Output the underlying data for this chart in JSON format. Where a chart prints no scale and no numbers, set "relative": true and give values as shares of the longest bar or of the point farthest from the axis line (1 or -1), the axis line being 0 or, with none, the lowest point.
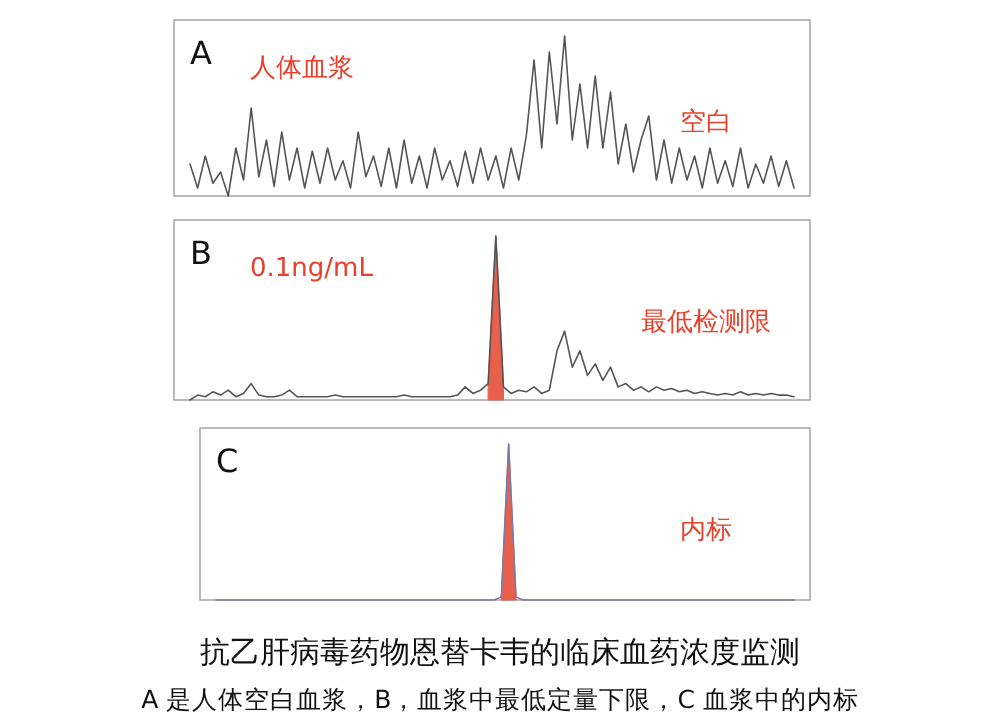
{
  "chart_data": [
    {
      "type": "line",
      "relative": true,
      "annotations": [
        "A",
        "人体血浆",
        "空白"
      ],
      "categories": [
        null,
        null,
        null,
        null,
        null,
        null,
        null,
        null,
        null,
        null,
        null,
        null,
        null,
        null,
        null,
        null,
        null,
        null,
        null,
        null,
        null,
        null,
        null,
        null,
        null,
        null,
        null,
        null,
        null,
        null,
        null,
        null,
        null,
        null,
        null,
        null,
        null,
        null,
        null,
        null,
        null,
        null,
        null,
        null,
        null,
        null,
        null,
        null,
        null,
        null,
        null,
        null,
        null,
        null,
        null,
        null,
        null,
        null,
        null,
        null,
        null,
        null,
        null,
        null,
        null,
        null,
        null,
        null,
        null,
        null,
        null,
        null,
        null,
        null,
        null,
        null,
        null,
        null,
        null,
        null
      ],
      "series": [
        {
          "color": "#555555",
          "values": [
            0.2,
            0.05,
            0.25,
            0.08,
            0.15,
            0,
            0.3,
            0.1,
            0.55,
            0.12,
            0.35,
            0.06,
            0.4,
            0.1,
            0.3,
            0.05,
            0.28,
            0.08,
            0.3,
            0.1,
            0.22,
            0.05,
            0.4,
            0.12,
            0.25,
            0.06,
            0.3,
            0.05,
            0.35,
            0.08,
            0.25,
            0.05,
            0.3,
            0.1,
            0.22,
            0.06,
            0.28,
            0.08,
            0.3,
            0.1,
            0.25,
            0.05,
            0.3,
            0.1,
            0.38,
            0.85,
            0.3,
            0.9,
            0.45,
            1.0,
            0.35,
            0.7,
            0.3,
            0.75,
            0.3,
            0.65,
            0.2,
            0.45,
            0.15,
            0.35,
            0.5,
            0.1,
            0.35,
            0.08,
            0.3,
            0.1,
            0.25,
            0.05,
            0.3,
            0.08,
            0.22,
            0.06,
            0.3,
            0.05,
            0.2,
            0.08,
            0.25,
            0.06,
            0.22,
            0.05
          ]
        }
      ]
    },
    {
      "type": "line",
      "relative": true,
      "annotations": [
        "B",
        "0.1ng/mL",
        "最低检测限"
      ],
      "categories": [
        null,
        null,
        null,
        null,
        null,
        null,
        null,
        null,
        null,
        null,
        null,
        null,
        null,
        null,
        null,
        null,
        null,
        null,
        null,
        null,
        null,
        null,
        null,
        null,
        null,
        null,
        null,
        null,
        null,
        null,
        null,
        null,
        null,
        null,
        null,
        null,
        null,
        null,
        null,
        null,
        null,
        null,
        null,
        null,
        null,
        null,
        null,
        null,
        null,
        null,
        null,
        null,
        null,
        null,
        null,
        null,
        null,
        null,
        null,
        null,
        null,
        null,
        null,
        null,
        null,
        null,
        null,
        null,
        null,
        null,
        null,
        null,
        null,
        null,
        null,
        null,
        null,
        null,
        null,
        null
      ],
      "series": [
        {
          "color": "#555555",
          "values": [
            0,
            0.03,
            0.02,
            0.05,
            0.03,
            0.06,
            0.02,
            0.04,
            0.1,
            0.03,
            0.02,
            0.02,
            0.03,
            0.06,
            0.02,
            0.02,
            0.02,
            0.02,
            0.02,
            0.03,
            0.02,
            0.02,
            0.02,
            0.02,
            0.02,
            0.02,
            0.02,
            0.02,
            0.03,
            0.02,
            0.02,
            0.02,
            0.02,
            0.02,
            0.02,
            0.03,
            0.08,
            0.04,
            0.06,
            0.1,
            1.0,
            0.08,
            0.04,
            0.06,
            0.05,
            0.08,
            0.04,
            0.06,
            0.3,
            0.42,
            0.2,
            0.3,
            0.15,
            0.22,
            0.12,
            0.2,
            0.08,
            0.1,
            0.06,
            0.08,
            0.05,
            0.08,
            0.06,
            0.07,
            0.05,
            0.06,
            0.04,
            0.05,
            0.04,
            0.03,
            0.04,
            0.03,
            0.05,
            0.03,
            0.04,
            0.03,
            0.04,
            0.03,
            0.03,
            0.02
          ]
        },
        {
          "type": "area",
          "color": "#e8604c",
          "values": [
            null,
            null,
            null,
            null,
            null,
            null,
            null,
            null,
            null,
            null,
            null,
            null,
            null,
            null,
            null,
            null,
            null,
            null,
            null,
            null,
            null,
            null,
            null,
            null,
            null,
            null,
            null,
            null,
            null,
            null,
            null,
            null,
            null,
            null,
            null,
            null,
            null,
            null,
            null,
            0.1,
            1.0,
            0.08,
            null,
            null,
            null,
            null,
            null,
            null,
            null,
            null,
            null,
            null,
            null,
            null,
            null,
            null,
            null,
            null,
            null,
            null,
            null,
            null,
            null,
            null,
            null,
            null,
            null,
            null,
            null,
            null,
            null,
            null,
            null,
            null,
            null,
            null,
            null,
            null,
            null,
            null
          ]
        }
      ]
    },
    {
      "type": "line",
      "relative": true,
      "title": "抗乙肝病毒药物恩替卡韦的临床血药浓度监测",
      "subtitle": "A 是人体空白血浆，B，血浆中最低定量下限，C 血浆中的内标",
      "annotations": [
        "C",
        "内标"
      ],
      "categories": [
        null,
        null,
        null,
        null,
        null,
        null,
        null,
        null,
        null,
        null,
        null,
        null,
        null,
        null,
        null,
        null,
        null,
        null,
        null,
        null,
        null,
        null,
        null,
        null,
        null,
        null,
        null,
        null,
        null,
        null,
        null,
        null,
        null,
        null,
        null,
        null,
        null,
        null,
        null,
        null,
        null,
        null,
        null,
        null,
        null,
        null,
        null,
        null,
        null,
        null,
        null,
        null,
        null,
        null,
        null,
        null,
        null,
        null,
        null,
        null,
        null,
        null,
        null,
        null,
        null,
        null,
        null,
        null,
        null,
        null,
        null,
        null,
        null,
        null,
        null,
        null,
        null,
        null,
        null,
        null
      ],
      "series": [
        {
          "color": "#7a7aa8",
          "values": [
            0,
            0,
            0,
            0,
            0,
            0,
            0,
            0,
            0,
            0,
            0,
            0,
            0,
            0,
            0,
            0,
            0,
            0,
            0,
            0,
            0,
            0,
            0,
            0,
            0,
            0,
            0,
            0,
            0,
            0,
            0,
            0,
            0,
            0,
            0,
            0,
            0,
            0,
            0,
            0.02,
            1.0,
            0.02,
            0,
            0,
            0,
            0,
            0,
            0,
            0,
            0,
            0,
            0,
            0,
            0,
            0,
            0,
            0,
            0,
            0,
            0,
            0,
            0,
            0,
            0,
            0,
            0,
            0,
            0,
            0,
            0,
            0,
            0,
            0,
            0,
            0,
            0,
            0,
            0,
            0,
            0
          ]
        },
        {
          "type": "area",
          "color": "#e8604c",
          "values": [
            null,
            null,
            null,
            null,
            null,
            null,
            null,
            null,
            null,
            null,
            null,
            null,
            null,
            null,
            null,
            null,
            null,
            null,
            null,
            null,
            null,
            null,
            null,
            null,
            null,
            null,
            null,
            null,
            null,
            null,
            null,
            null,
            null,
            null,
            null,
            null,
            null,
            null,
            null,
            0.02,
            1.0,
            0.02,
            null,
            null,
            null,
            null,
            null,
            null,
            null,
            null,
            null,
            null,
            null,
            null,
            null,
            null,
            null,
            null,
            null,
            null,
            null,
            null,
            null,
            null,
            null,
            null,
            null,
            null,
            null,
            null,
            null,
            null,
            null,
            null,
            null,
            null,
            null,
            null,
            null,
            null
          ]
        }
      ]
    }
  ]
}
